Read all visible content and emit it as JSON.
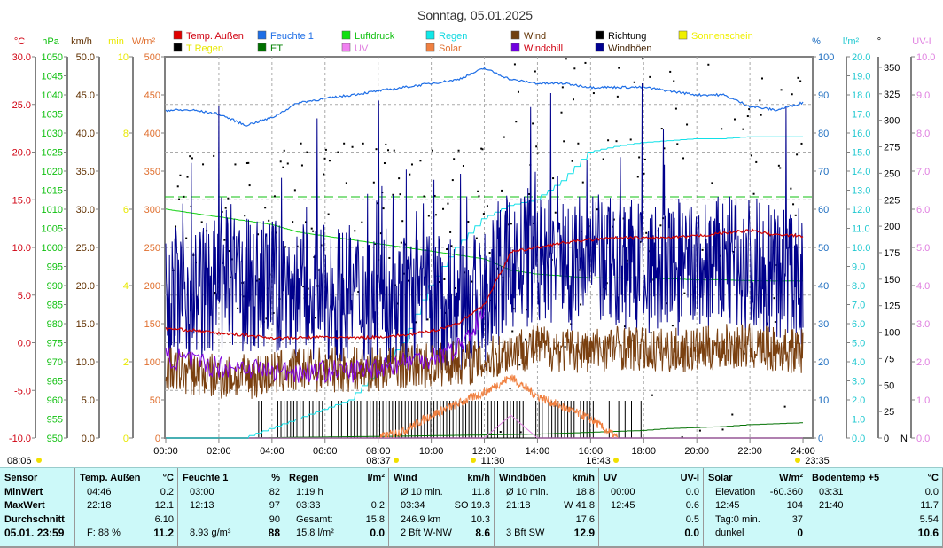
{
  "chart_data": {
    "type": "line",
    "title": "Sonntag, 05.01.2025",
    "x_hours": [
      0,
      1,
      2,
      3,
      4,
      5,
      6,
      7,
      8,
      9,
      10,
      11,
      12,
      13,
      14,
      15,
      16,
      17,
      18,
      19,
      20,
      21,
      22,
      23,
      24
    ],
    "x_tick_labels": [
      "00:00",
      "02:00",
      "04:00",
      "06:00",
      "08:00",
      "10:00",
      "12:00",
      "14:00",
      "16:00",
      "18:00",
      "20:00",
      "22:00",
      "24:00"
    ],
    "legend": [
      {
        "label": "Temp. Außen",
        "box": "#e00000",
        "text": "#d00010"
      },
      {
        "label": "Feuchte 1",
        "box": "#1e6ee6",
        "text": "#1e6ee6"
      },
      {
        "label": "Luftdruck",
        "box": "#10e010",
        "text": "#10c010"
      },
      {
        "label": "Regen",
        "box": "#10e8e8",
        "text": "#10d8e0"
      },
      {
        "label": "Wind",
        "box": "#704010",
        "text": "#603000"
      },
      {
        "label": "Richtung",
        "box": "#000000",
        "text": "#000000"
      },
      {
        "label": "Sonnenschein",
        "box": "#f0f000",
        "text": "#f0f000"
      },
      {
        "label": "T Regen",
        "box": "#000000",
        "text": "#e8e800"
      },
      {
        "label": "ET",
        "box": "#007000",
        "text": "#008000"
      },
      {
        "label": "UV",
        "box": "#f080f0",
        "text": "#e080e0"
      },
      {
        "label": "Solar",
        "box": "#f08040",
        "text": "#e07030"
      },
      {
        "label": "Windchill",
        "box": "#7000e0",
        "text": "#d00010"
      },
      {
        "label": "Windböen",
        "box": "#000090",
        "text": "#402000"
      }
    ],
    "axes": [
      {
        "unit": "°C",
        "min": -10,
        "max": 30,
        "step": 5,
        "dec": 1,
        "color": "#d00010"
      },
      {
        "unit": "hPa",
        "min": 950,
        "max": 1050,
        "step": 5,
        "dec": 0,
        "color": "#10c010"
      },
      {
        "unit": "km/h",
        "min": 0,
        "max": 50,
        "step": 5,
        "dec": 1,
        "color": "#603000"
      },
      {
        "unit": "min",
        "min": 0,
        "max": 10,
        "step": 2,
        "dec": 0,
        "color": "#e8e800"
      },
      {
        "unit": "W/m²",
        "min": 0,
        "max": 500,
        "step": 50,
        "dec": 0,
        "color": "#e07030"
      },
      {
        "unit": "%",
        "min": 0,
        "max": 100,
        "step": 10,
        "dec": 0,
        "color": "#1e6ec0"
      },
      {
        "unit": "l/m²",
        "min": 0,
        "max": 20,
        "step": 1,
        "dec": 1,
        "color": "#20c8d0"
      },
      {
        "unit": "°",
        "min": 0,
        "max": 360,
        "step": 25,
        "dec": 0,
        "color": "#000000",
        "top": 350
      },
      {
        "unit": "UV-I",
        "min": 0,
        "max": 10,
        "step": 1,
        "dec": 1,
        "color": "#e080e0"
      }
    ],
    "series": [
      {
        "name": "Temp. Außen",
        "axis": "°C",
        "color": "#d00000",
        "values": [
          1.5,
          1.3,
          1.0,
          0.8,
          0.5,
          0.5,
          0.6,
          0.5,
          0.6,
          0.8,
          1.2,
          2.0,
          4.0,
          9.5,
          10.0,
          10.5,
          10.8,
          11.0,
          11.0,
          11.0,
          11.2,
          11.5,
          11.8,
          11.3,
          11.2
        ]
      },
      {
        "name": "Feuchte 1",
        "axis": "%",
        "color": "#1e6ee6",
        "values": [
          86,
          86,
          85,
          82,
          84,
          88,
          89,
          90,
          91,
          92,
          93,
          94,
          97,
          94,
          93,
          93,
          92,
          92,
          92,
          91,
          90,
          90,
          87,
          86,
          88
        ]
      },
      {
        "name": "Luftdruck",
        "axis": "hPa",
        "color": "#10d010",
        "values": [
          1010,
          1009,
          1008,
          1007,
          1006,
          1004,
          1003,
          1002,
          1001,
          1000,
          999,
          998,
          997,
          994,
          993,
          992.5,
          992,
          992,
          992,
          991.8,
          991.5,
          991.5,
          991.3,
          991.2,
          991.2
        ]
      },
      {
        "name": "Regen",
        "axis": "l/m²",
        "color": "#10e0e8",
        "values": [
          0,
          0,
          0,
          0,
          0.5,
          1,
          1.5,
          2,
          3.5,
          5,
          8,
          10,
          11.5,
          12.2,
          12.5,
          13.5,
          15,
          15.3,
          15.5,
          15.6,
          15.7,
          15.7,
          15.8,
          15.8,
          15.8
        ]
      },
      {
        "name": "Wind",
        "axis": "km/h",
        "color": "#7a4010",
        "values": [
          9,
          8.5,
          8,
          8,
          8.5,
          9,
          9,
          9,
          9,
          9.5,
          9.5,
          10,
          10,
          11.5,
          12,
          11.5,
          11.5,
          12,
          11.5,
          11.5,
          11.5,
          12,
          12,
          11.5,
          11.5
        ]
      },
      {
        "name": "Windböen",
        "axis": "km/h",
        "color": "#00008c",
        "values": [
          19,
          19,
          20,
          20,
          20,
          19,
          19,
          19,
          18,
          18,
          18,
          17,
          18,
          23,
          23,
          23,
          23,
          23,
          22,
          22,
          22,
          23,
          23,
          22,
          21
        ]
      },
      {
        "name": "Windchill",
        "axis": "°C",
        "color": "#8000e0",
        "values": [
          -1.5,
          -2.0,
          -2.5,
          -2.5,
          -3,
          -3,
          -3,
          -3,
          -2.5,
          -2.0,
          -1.5,
          -0.5,
          3.0
        ]
      },
      {
        "name": "ET",
        "axis": "l/m²",
        "color": "#007000",
        "values": [
          0,
          0,
          0,
          0,
          0.02,
          0.04,
          0.05,
          0.07,
          0.08,
          0.1,
          0.12,
          0.14,
          0.16,
          0.18,
          0.2,
          0.25,
          0.3,
          0.35,
          0.4,
          0.5,
          0.55,
          0.6,
          0.7,
          0.75,
          0.8
        ]
      },
      {
        "name": "Solar",
        "axis": "W/m²",
        "values_note": "",
        "color": "#f08040",
        "values": [
          0,
          0,
          0,
          0,
          0,
          0,
          0,
          0,
          0,
          10,
          30,
          45,
          60,
          80,
          55,
          40,
          25,
          0,
          0,
          0,
          0,
          0,
          0,
          0,
          0
        ]
      },
      {
        "name": "UV",
        "axis": "UV-I",
        "color": "#e080e0",
        "values": [
          0,
          0,
          0,
          0,
          0,
          0,
          0,
          0,
          0,
          0,
          0,
          0,
          0,
          0.6,
          0,
          0,
          0,
          0,
          0,
          0,
          0,
          0,
          0,
          0,
          0
        ]
      }
    ],
    "reference_line": {
      "axis": "hPa",
      "value": 1013.25,
      "color": "#10c010"
    },
    "sun_events": [
      "08:06",
      "08:37",
      "11:30",
      "16:43",
      "23:35"
    ]
  },
  "table": {
    "panels": [
      {
        "rows": [
          [
            "Sensor",
            ""
          ],
          [
            "MinWert",
            ""
          ],
          [
            "MaxWert",
            ""
          ],
          [
            "Durchschnitt",
            ""
          ],
          [
            "05.01. 23:59",
            ""
          ]
        ]
      },
      {
        "rows": [
          [
            "Temp. Außen",
            "°C"
          ],
          [
            "04:46",
            "0.2"
          ],
          [
            "22:18",
            "12.1"
          ],
          [
            "",
            "6.10"
          ],
          [
            "F: 88 %",
            "11.2"
          ]
        ]
      },
      {
        "rows": [
          [
            "Feuchte 1",
            "%"
          ],
          [
            "03:00",
            "82"
          ],
          [
            "12:13",
            "97"
          ],
          [
            "",
            "90"
          ],
          [
            "8.93 g/m³",
            "88"
          ]
        ]
      },
      {
        "rows": [
          [
            "Regen",
            "l/m²"
          ],
          [
            "1:19 h",
            ""
          ],
          [
            "03:33",
            "0.2"
          ],
          [
            "Gesamt:",
            "15.8"
          ],
          [
            "15.8 l/m²",
            "0.0"
          ]
        ]
      },
      {
        "rows": [
          [
            "Wind",
            "km/h"
          ],
          [
            "Ø 10 min.",
            "11.8"
          ],
          [
            "03:34",
            "SO 19.3"
          ],
          [
            "246.9 km",
            "10.3"
          ],
          [
            "2 Bft W-NW",
            "8.6"
          ]
        ]
      },
      {
        "rows": [
          [
            "Windböen",
            "km/h"
          ],
          [
            "Ø 10 min.",
            "18.8"
          ],
          [
            "21:18",
            "W 41.8"
          ],
          [
            "",
            "17.6"
          ],
          [
            "3 Bft SW",
            "12.9"
          ]
        ]
      },
      {
        "rows": [
          [
            "UV",
            "UV-I"
          ],
          [
            "00:00",
            "0.0"
          ],
          [
            "12:45",
            "0.6"
          ],
          [
            "",
            "0.5"
          ],
          [
            "",
            "0.0"
          ]
        ]
      },
      {
        "rows": [
          [
            "Solar",
            "W/m²"
          ],
          [
            "Elevation",
            "-60.360"
          ],
          [
            "12:45",
            "104"
          ],
          [
            "Tag:0 min.",
            "37"
          ],
          [
            "dunkel",
            "0"
          ]
        ]
      },
      {
        "rows": [
          [
            "Bodentemp +5",
            "°C"
          ],
          [
            "03:31",
            "0.0"
          ],
          [
            "21:40",
            "11.7"
          ],
          [
            "",
            "5.54"
          ],
          [
            "",
            "10.6"
          ]
        ]
      }
    ]
  }
}
